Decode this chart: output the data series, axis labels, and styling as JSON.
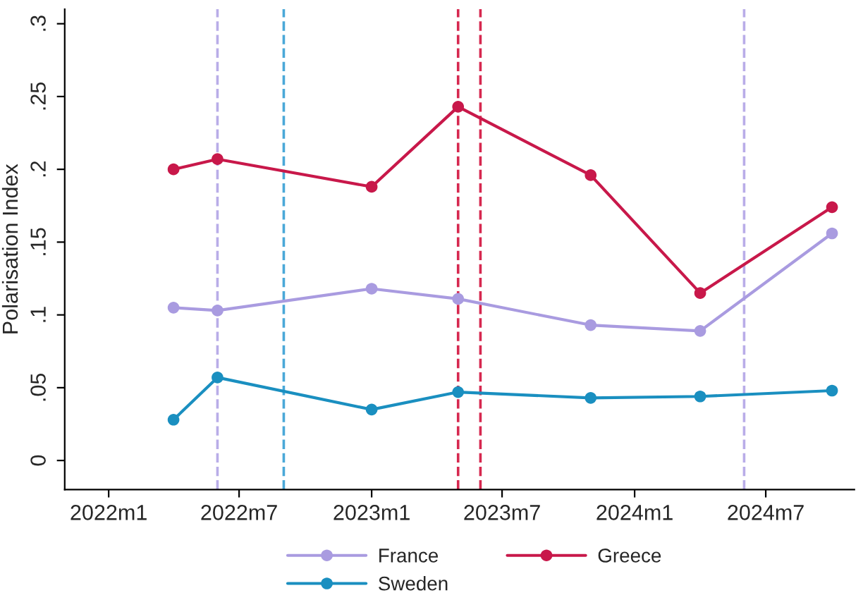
{
  "chart_data": {
    "type": "line",
    "ylabel": "Polarisation Index",
    "x": [
      "2022-04",
      "2022-06",
      "2023-01",
      "2023-05",
      "2023-11",
      "2024-04",
      "2024-10"
    ],
    "series": [
      {
        "name": "France",
        "color": "#a99be0",
        "values": [
          0.105,
          0.103,
          0.118,
          0.111,
          0.093,
          0.089,
          0.156
        ]
      },
      {
        "name": "Greece",
        "color": "#c8184a",
        "values": [
          0.2,
          0.207,
          0.188,
          0.243,
          0.196,
          0.115,
          0.174
        ]
      },
      {
        "name": "Sweden",
        "color": "#1a8fc0",
        "values": [
          0.028,
          0.057,
          0.035,
          0.047,
          0.043,
          0.044,
          0.048
        ]
      }
    ],
    "xlim": [
      "2021-11",
      "2024-11"
    ],
    "xticks": [
      {
        "value": "2022-01",
        "label": "2022m1"
      },
      {
        "value": "2022-07",
        "label": "2022m7"
      },
      {
        "value": "2023-01",
        "label": "2023m1"
      },
      {
        "value": "2023-07",
        "label": "2023m7"
      },
      {
        "value": "2024-01",
        "label": "2024m1"
      },
      {
        "value": "2024-07",
        "label": "2024m7"
      }
    ],
    "ylim": [
      -0.02,
      0.31
    ],
    "yticks": [
      {
        "value": 0,
        "label": "0"
      },
      {
        "value": 0.05,
        "label": ".05"
      },
      {
        "value": 0.1,
        "label": ".1"
      },
      {
        "value": 0.15,
        "label": ".15"
      },
      {
        "value": 0.2,
        "label": ".2"
      },
      {
        "value": 0.25,
        "label": ".25"
      },
      {
        "value": 0.3,
        "label": ".3"
      }
    ],
    "ref_lines": [
      {
        "axis": "x",
        "value": "2022-06",
        "color": "#b9ade8",
        "line_style": "dashed"
      },
      {
        "axis": "x",
        "value": "2022-09",
        "color": "#4aa8d8",
        "line_style": "dashed"
      },
      {
        "axis": "x",
        "value": "2023-05",
        "color": "#d6284f",
        "line_style": "dashed"
      },
      {
        "axis": "x",
        "value": "2023-06",
        "color": "#d6284f",
        "line_style": "dashed"
      },
      {
        "axis": "x",
        "value": "2024-06",
        "color": "#b9ade8",
        "line_style": "dashed"
      }
    ],
    "marker": "circle",
    "line_style": "solid",
    "grid": false,
    "legend": "bottom"
  }
}
